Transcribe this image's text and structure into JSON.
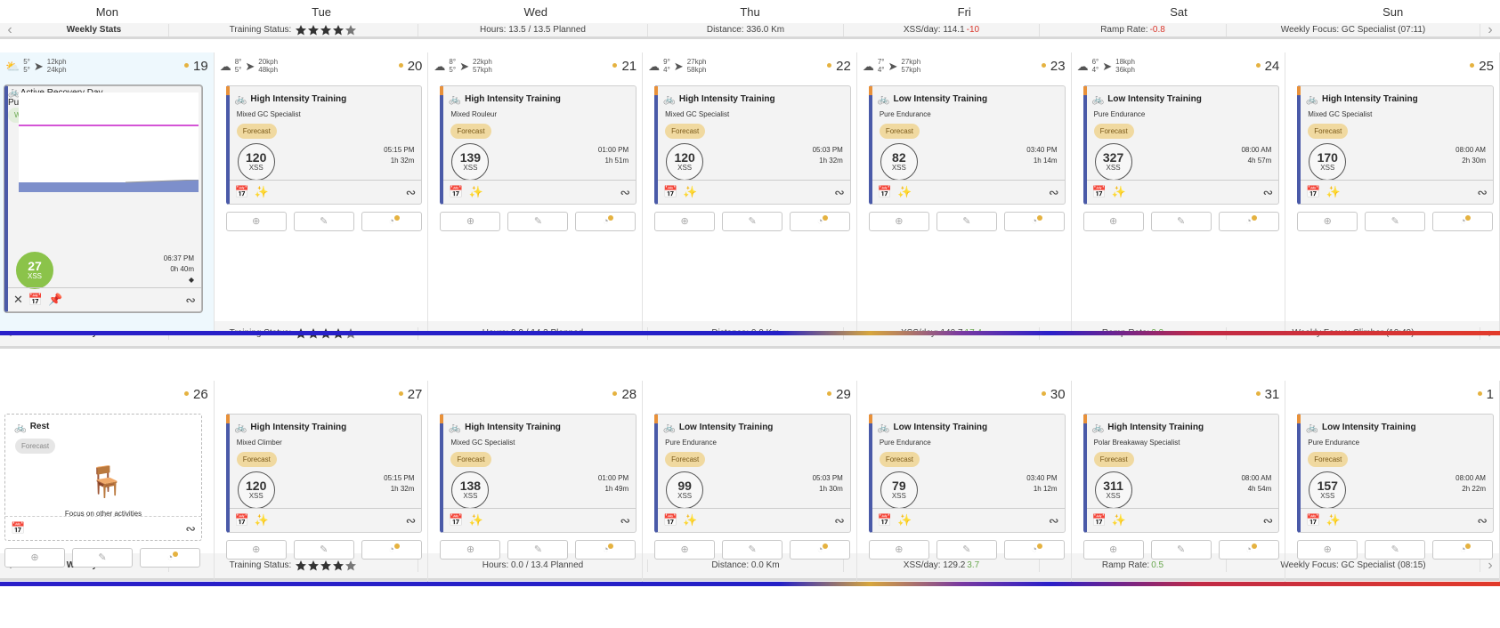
{
  "days": [
    "Mon",
    "Tue",
    "Wed",
    "Thu",
    "Fri",
    "Sat",
    "Sun"
  ],
  "stats": [
    {
      "label": "Weekly Stats",
      "training_status": "Training Status:",
      "stars": 4.5,
      "hours": "Hours: 13.5 / 13.5 Planned",
      "distance": "Distance: 336.0 Km",
      "xss": "XSS/day: 114.1",
      "xss_delta": "-10",
      "ramp": "Ramp Rate:",
      "ramp_val": "-0.8",
      "focus": "Weekly Focus: GC Specialist (07:11)"
    },
    {
      "label": "Weekly Stats",
      "training_status": "Training Status:",
      "stars": 4.5,
      "hours": "Hours: 0.0 / 14.3 Planned",
      "distance": "Distance: 0.0 Km",
      "xss": "XSS/day: 140.7",
      "xss_delta": "17.4",
      "ramp": "Ramp Rate:",
      "ramp_val": "2.2",
      "focus": "Weekly Focus: Climber (10:49)"
    },
    {
      "label": "Weekly Stats",
      "training_status": "Training Status:",
      "stars": 4.5,
      "hours": "Hours: 0.0 / 13.4 Planned",
      "distance": "Distance: 0.0 Km",
      "xss": "XSS/day: 129.2",
      "xss_delta": "3.7",
      "ramp": "Ramp Rate:",
      "ramp_val": "0.5",
      "focus": "Weekly Focus: GC Specialist (08:15)"
    }
  ],
  "week1": [
    {
      "num": "19",
      "w_hi": "5°",
      "w_lo": "5°",
      "wind": "12kph",
      "gust": "24kph",
      "weather_icon": "partly-sunny-icon",
      "title": "Active Recovery Day",
      "sub": "Pure Endurance",
      "pill1": "WOTD",
      "pill2": "Forecast",
      "xss": "27",
      "unit": "XSS",
      "time": "06:37 PM",
      "dur": "0h 40m"
    },
    {
      "num": "20",
      "w_hi": "8°",
      "w_lo": "5°",
      "wind": "20kph",
      "gust": "48kph",
      "title": "High Intensity Training",
      "sub": "Mixed GC Specialist",
      "pill": "Forecast",
      "xss": "120",
      "unit": "XSS",
      "time": "05:15 PM",
      "dur": "1h 32m"
    },
    {
      "num": "21",
      "w_hi": "8°",
      "w_lo": "5°",
      "wind": "22kph",
      "gust": "57kph",
      "title": "High Intensity Training",
      "sub": "Mixed Rouleur",
      "pill": "Forecast",
      "xss": "139",
      "unit": "XSS",
      "time": "01:00 PM",
      "dur": "1h 51m"
    },
    {
      "num": "22",
      "w_hi": "9°",
      "w_lo": "4°",
      "wind": "27kph",
      "gust": "58kph",
      "title": "High Intensity Training",
      "sub": "Mixed GC Specialist",
      "pill": "Forecast",
      "xss": "120",
      "unit": "XSS",
      "time": "05:03 PM",
      "dur": "1h 32m"
    },
    {
      "num": "23",
      "w_hi": "7°",
      "w_lo": "4°",
      "wind": "27kph",
      "gust": "57kph",
      "title": "Low Intensity Training",
      "sub": "Pure Endurance",
      "pill": "Forecast",
      "xss": "82",
      "unit": "XSS",
      "time": "03:40 PM",
      "dur": "1h 14m"
    },
    {
      "num": "24",
      "w_hi": "6°",
      "w_lo": "4°",
      "wind": "18kph",
      "gust": "36kph",
      "title": "Low Intensity Training",
      "sub": "Pure Endurance",
      "pill": "Forecast",
      "xss": "327",
      "unit": "XSS",
      "time": "08:00 AM",
      "dur": "4h 57m"
    },
    {
      "num": "25",
      "title": "High Intensity Training",
      "sub": "Mixed GC Specialist",
      "pill": "Forecast",
      "xss": "170",
      "unit": "XSS",
      "time": "08:00 AM",
      "dur": "2h 30m"
    }
  ],
  "week2": [
    {
      "num": "26",
      "title": "Rest",
      "pill": "Forecast",
      "msg": "Focus on other activities"
    },
    {
      "num": "27",
      "title": "High Intensity Training",
      "sub": "Mixed Climber",
      "pill": "Forecast",
      "xss": "120",
      "unit": "XSS",
      "time": "05:15 PM",
      "dur": "1h 32m"
    },
    {
      "num": "28",
      "title": "High Intensity Training",
      "sub": "Mixed GC Specialist",
      "pill": "Forecast",
      "xss": "138",
      "unit": "XSS",
      "time": "01:00 PM",
      "dur": "1h 49m"
    },
    {
      "num": "29",
      "title": "Low Intensity Training",
      "sub": "Pure Endurance",
      "pill": "Forecast",
      "xss": "99",
      "unit": "XSS",
      "time": "05:03 PM",
      "dur": "1h 30m"
    },
    {
      "num": "30",
      "title": "Low Intensity Training",
      "sub": "Pure Endurance",
      "pill": "Forecast",
      "xss": "79",
      "unit": "XSS",
      "time": "03:40 PM",
      "dur": "1h 12m"
    },
    {
      "num": "31",
      "title": "High Intensity Training",
      "sub": "Polar Breakaway Specialist",
      "pill": "Forecast",
      "xss": "311",
      "unit": "XSS",
      "time": "08:00 AM",
      "dur": "4h 54m"
    },
    {
      "num": "1",
      "title": "Low Intensity Training",
      "sub": "Pure Endurance",
      "pill": "Forecast",
      "xss": "157",
      "unit": "XSS",
      "time": "08:00 AM",
      "dur": "2h 22m"
    }
  ],
  "colors": {
    "accent_bar": "#4a5aa8",
    "forecast": "#f0d9a0",
    "wotd": "#6aa84f",
    "negative": "#d9362b",
    "positive": "#6aa84f"
  }
}
